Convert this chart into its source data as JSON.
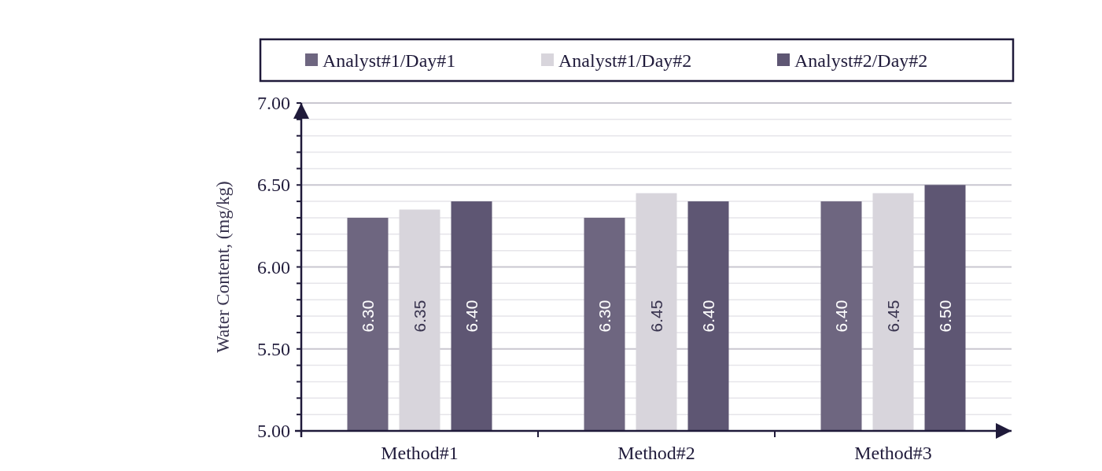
{
  "chart_data": {
    "type": "bar",
    "ylabel": "Water Content, (mg/kg)",
    "categories": [
      "Method#1",
      "Method#2",
      "Method#3"
    ],
    "series": [
      {
        "name": "Analyst#1/Day#1",
        "color": "#6e6680",
        "values": [
          6.3,
          6.3,
          6.4
        ],
        "value_labels": [
          "6.30",
          "6.30",
          "6.40"
        ]
      },
      {
        "name": "Analyst#1/Day#2",
        "color": "#d8d5dc",
        "values": [
          6.35,
          6.45,
          6.45
        ],
        "value_labels": [
          "6.35",
          "6.45",
          "6.45"
        ]
      },
      {
        "name": "Analyst#2/Day#2",
        "color": "#5e5673",
        "values": [
          6.4,
          6.4,
          6.5
        ],
        "value_labels": [
          "6.40",
          "6.40",
          "6.50"
        ]
      }
    ],
    "ylim": [
      5,
      7
    ],
    "yticks": [
      {
        "value": 5,
        "label": "5.00"
      },
      {
        "value": 5.1,
        "label": null
      },
      {
        "value": 5.2,
        "label": null
      },
      {
        "value": 5.3,
        "label": null
      },
      {
        "value": 5.4,
        "label": null
      },
      {
        "value": 5.5,
        "label": "5.50"
      },
      {
        "value": 5.6,
        "label": null
      },
      {
        "value": 5.7,
        "label": null
      },
      {
        "value": 5.8,
        "label": null
      },
      {
        "value": 5.9,
        "label": null
      },
      {
        "value": 6,
        "label": "6.00"
      },
      {
        "value": 6.1,
        "label": null
      },
      {
        "value": 6.2,
        "label": null
      },
      {
        "value": 6.3,
        "label": null
      },
      {
        "value": 6.4,
        "label": null
      },
      {
        "value": 6.5,
        "label": "6.50"
      },
      {
        "value": 6.6,
        "label": null
      },
      {
        "value": 6.7,
        "label": null
      },
      {
        "value": 6.8,
        "label": null
      },
      {
        "value": 6.9,
        "label": null
      },
      {
        "value": 7,
        "label": "7.00"
      }
    ],
    "grid": true,
    "legend": "top"
  }
}
